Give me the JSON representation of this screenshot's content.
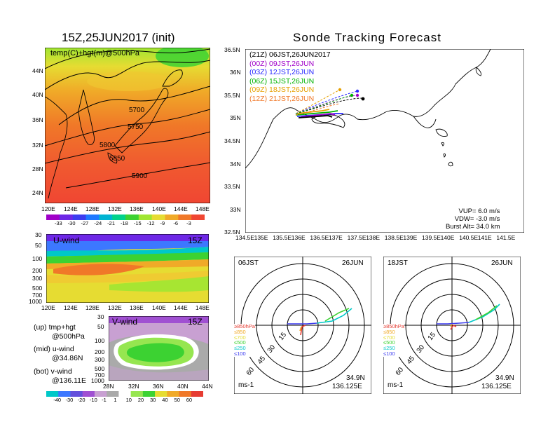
{
  "left_title": "15Z,25JUN2017 (init)",
  "right_title": "Sonde Tracking Forecast",
  "map_500": {
    "label": "temp(C)+hgt(m)@500hPa",
    "contours": [
      "5700",
      "5750",
      "5800",
      "5850",
      "5900"
    ],
    "lat_ticks": [
      "44N",
      "40N",
      "36N",
      "32N",
      "28N",
      "24N"
    ],
    "lon_ticks": [
      "120E",
      "124E",
      "128E",
      "132E",
      "136E",
      "140E",
      "144E",
      "148E"
    ],
    "colorbar": {
      "labels": [
        "-33",
        "-30",
        "-27",
        "-24",
        "-21",
        "-18",
        "-15",
        "-12",
        "-9",
        "-6",
        "-3"
      ],
      "colors": [
        "#a000c8",
        "#6e28e6",
        "#3c3cf0",
        "#1e78ff",
        "#00b4d2",
        "#00d28c",
        "#3cd232",
        "#a0e632",
        "#e6dc32",
        "#f0aa28",
        "#f07828",
        "#f04632"
      ]
    }
  },
  "u_wind": {
    "label": "U-wind",
    "time": "15Z",
    "p_ticks": [
      "30",
      "50",
      "100",
      "200",
      "300",
      "500",
      "700",
      "1000"
    ],
    "lon_ticks": [
      "120E",
      "124E",
      "128E",
      "132E",
      "136E",
      "140E",
      "144E",
      "148E"
    ]
  },
  "v_wind": {
    "label": "V-wind",
    "time": "15Z",
    "p_ticks": [
      "30",
      "50",
      "100",
      "200",
      "300",
      "500",
      "700",
      "1000"
    ],
    "lat_ticks": [
      "28N",
      "32N",
      "36N",
      "40N",
      "44N"
    ]
  },
  "notes": {
    "up": [
      "(up) tmp+hgt",
      "@500hPa"
    ],
    "mid": [
      "(mid) u-wind",
      "@34.86N"
    ],
    "bot": [
      "(bot) v-wind",
      "@136.11E"
    ]
  },
  "wind_colorbar": {
    "labels": [
      "-40",
      "-30",
      "-20",
      "-10",
      "-1",
      "1",
      "10",
      "20",
      "30",
      "40",
      "50",
      "60"
    ],
    "colors": [
      "#00c8c8",
      "#3c78ff",
      "#6450dc",
      "#a050d2",
      "#c8a0d2",
      "#aaaaaa",
      "#ffffff",
      "#96e650",
      "#3cd232",
      "#e6dc32",
      "#f0aa28",
      "#f07828",
      "#e63c32"
    ]
  },
  "tracking": {
    "lat_ticks": [
      "36.5N",
      "36N",
      "35.5N",
      "35N",
      "34.5N",
      "34N",
      "33.5N",
      "33N",
      "32.5N"
    ],
    "lon_ticks": [
      "134.5E",
      "135E",
      "135.5E",
      "136E",
      "136.5E",
      "137E",
      "137.5E",
      "138E",
      "138.5E",
      "139E",
      "139.5E",
      "140E",
      "140.5E",
      "141E",
      "141.5E"
    ],
    "legend": [
      {
        "text": "(21Z)  06JST,26JUN2017",
        "color": "#000000"
      },
      {
        "text": "(00Z)  09JST,26JUN",
        "color": "#a000c8"
      },
      {
        "text": "(03Z)  12JST,26JUN",
        "color": "#2828ff"
      },
      {
        "text": "(06Z)  15JST,26JUN",
        "color": "#00b400"
      },
      {
        "text": "(09Z)  18JST,26JUN",
        "color": "#e6a000"
      },
      {
        "text": "(12Z)  21JST,26JUN",
        "color": "#f07828"
      }
    ],
    "params": [
      "VUP=  6.0 m/s",
      "VDW= -3.0 m/s",
      "Burst Alt= 34.0 km"
    ]
  },
  "hodographs": [
    {
      "time": "06JST",
      "date": "26JUN",
      "rings": [
        "15",
        "30",
        "45",
        "60"
      ],
      "lat": "34.9N",
      "lon": "136.125E",
      "unit": "ms-1"
    },
    {
      "time": "18JST",
      "date": "26JUN",
      "rings": [
        "15",
        "30",
        "45",
        "60"
      ],
      "lat": "34.9N",
      "lon": "136.125E",
      "unit": "ms-1"
    }
  ],
  "hodo_legend": [
    {
      "text": "≥850hPa",
      "color": "#e63c32"
    },
    {
      "text": "≤850",
      "color": "#f0aa28"
    },
    {
      "text": "≤700",
      "color": "#e6dc32"
    },
    {
      "text": "≤500",
      "color": "#3cd232"
    },
    {
      "text": "≤250",
      "color": "#00c8c8"
    },
    {
      "text": "≤100",
      "color": "#3c3cf0"
    }
  ]
}
